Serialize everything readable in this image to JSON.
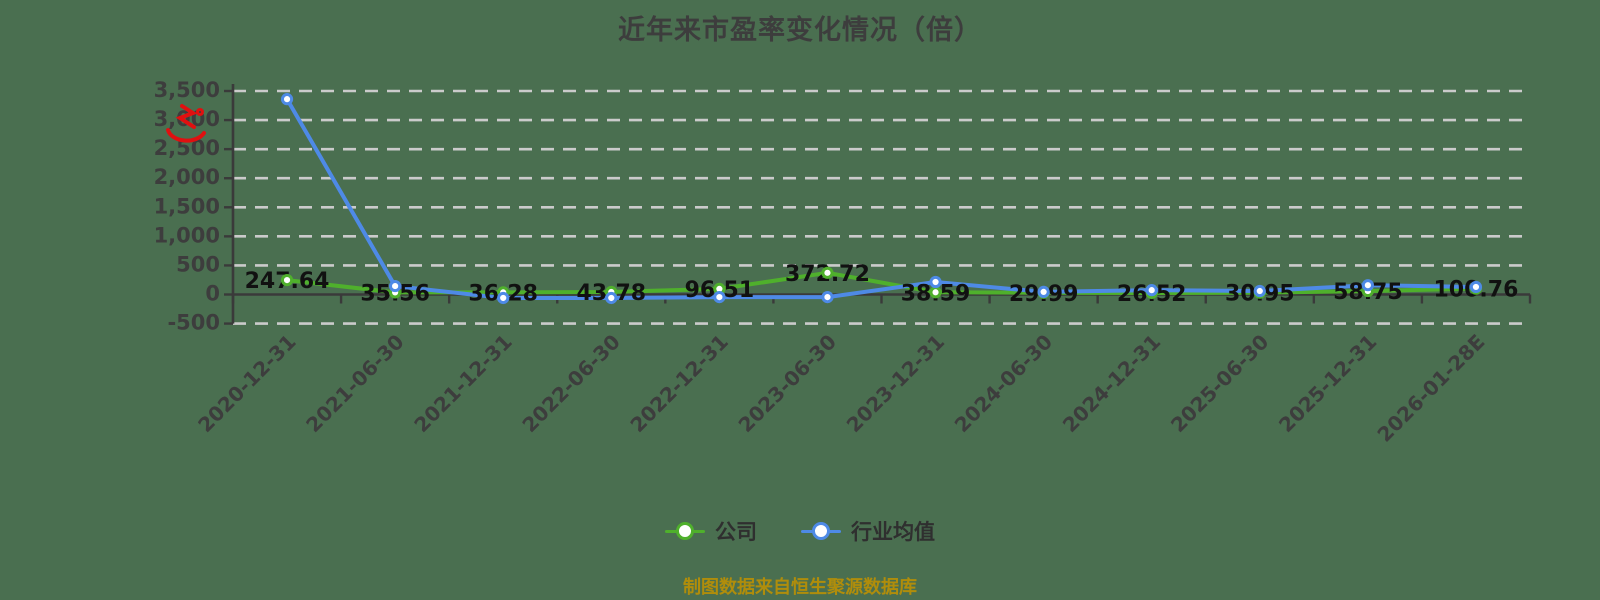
{
  "page": {
    "background": "#4a6f50"
  },
  "header": {
    "title": "近年来市盈率变化情况（倍）",
    "title_color": "#3d3d3d"
  },
  "legend": {
    "items": [
      {
        "label": "公司",
        "color": "#4fb02c"
      },
      {
        "label": "行业均值",
        "color": "#4e8ae6"
      }
    ],
    "text_color": "#2f2f2f"
  },
  "footer": {
    "source_text": "制图数据来自恒生聚源数据库",
    "color": "#b08d0b"
  },
  "watermark": {
    "icon": "red-logo-watermark",
    "color": "#e01010"
  },
  "chart_data": {
    "type": "line",
    "title": "近年来市盈率变化情况（倍）",
    "categories": [
      "2020-12-31",
      "2021-06-30",
      "2021-12-31",
      "2022-06-30",
      "2022-12-31",
      "2023-06-30",
      "2023-12-31",
      "2024-06-30",
      "2024-12-31",
      "2025-06-30",
      "2025-12-31",
      "2026-01-28E"
    ],
    "series": [
      {
        "name": "公司",
        "color": "#4fb02c",
        "values": [
          247.64,
          35.56,
          36.28,
          43.78,
          96.51,
          372.72,
          38.59,
          29.99,
          26.52,
          30.95,
          58.75,
          100.76
        ],
        "point_labels": [
          "247.64",
          "35.56",
          "36.28",
          "43.78",
          "96.51",
          "372.72",
          "38.59",
          "29.99",
          "26.52",
          "30.95",
          "58.75",
          "100.76"
        ],
        "labeled": true
      },
      {
        "name": "行业均值",
        "color": "#4e8ae6",
        "values": [
          3360,
          145,
          -60,
          -60,
          -45,
          -45,
          215,
          45,
          75,
          60,
          160,
          130
        ],
        "values_estimated_from_pixels": true,
        "labeled": false
      }
    ],
    "ylim": [
      -500,
      3500
    ],
    "yticks": {
      "values": [
        3500,
        3000,
        2500,
        2000,
        1500,
        1000,
        500,
        0,
        -500
      ],
      "labels": [
        "3,500",
        "3,000",
        "2,500",
        "2,000",
        "1,500",
        "1,000",
        "500",
        "0",
        "-500"
      ]
    },
    "x_label_rotation": -45,
    "grid": {
      "horizontal": true,
      "style": "dashed",
      "color": "#cbcbcb"
    },
    "axis_color": "#3a3a3a",
    "tick_text_color": "#3d3d3d",
    "data_label_color": "#111111",
    "marker_fill": "#ffffff",
    "legend_position": "bottom"
  }
}
